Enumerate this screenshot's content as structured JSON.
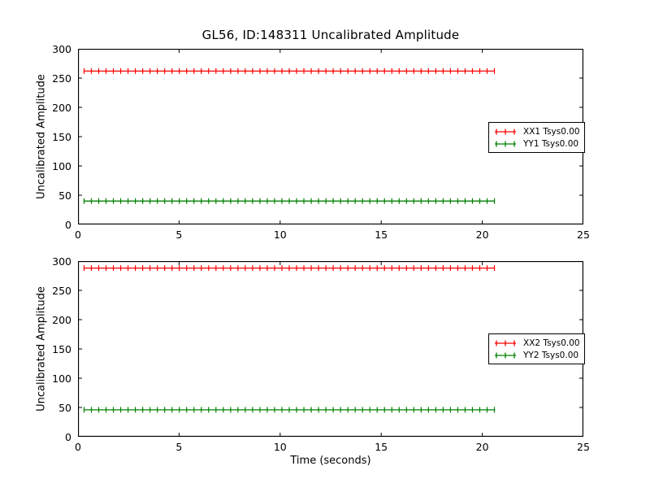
{
  "title": "GL56, ID:148311 Uncalibrated Amplitude",
  "colors": {
    "axis": "#000000",
    "background": "#ffffff",
    "red_series": "#ff0000",
    "green_series": "#008000"
  },
  "chart_data": [
    {
      "type": "line",
      "subplot": "top",
      "ylabel": "Uncalibrated Amplitude",
      "xlabel": "",
      "xlim": [
        0,
        25
      ],
      "ylim": [
        0,
        300
      ],
      "xticks": [
        0,
        5,
        10,
        15,
        20,
        25
      ],
      "yticks": [
        0,
        50,
        100,
        150,
        200,
        250,
        300
      ],
      "grid": false,
      "legend_position": "center right",
      "marker": "plus",
      "x_start": 0.3,
      "x_end": 20.6,
      "n_points": 57,
      "series": [
        {
          "name": "XX1",
          "label": "XX1 Tsys0.00",
          "color": "#ff0000",
          "y_value": 262
        },
        {
          "name": "YY1",
          "label": "YY1 Tsys0.00",
          "color": "#008000",
          "y_value": 40
        }
      ]
    },
    {
      "type": "line",
      "subplot": "bottom",
      "ylabel": "Uncalibrated Amplitude",
      "xlabel": "Time (seconds)",
      "xlim": [
        0,
        25
      ],
      "ylim": [
        0,
        300
      ],
      "xticks": [
        0,
        5,
        10,
        15,
        20,
        25
      ],
      "yticks": [
        0,
        50,
        100,
        150,
        200,
        250,
        300
      ],
      "grid": false,
      "legend_position": "center right",
      "marker": "plus",
      "x_start": 0.3,
      "x_end": 20.6,
      "n_points": 57,
      "series": [
        {
          "name": "XX2",
          "label": "XX2 Tsys0.00",
          "color": "#ff0000",
          "y_value": 288
        },
        {
          "name": "YY2",
          "label": "YY2 Tsys0.00",
          "color": "#008000",
          "y_value": 46
        }
      ]
    }
  ]
}
